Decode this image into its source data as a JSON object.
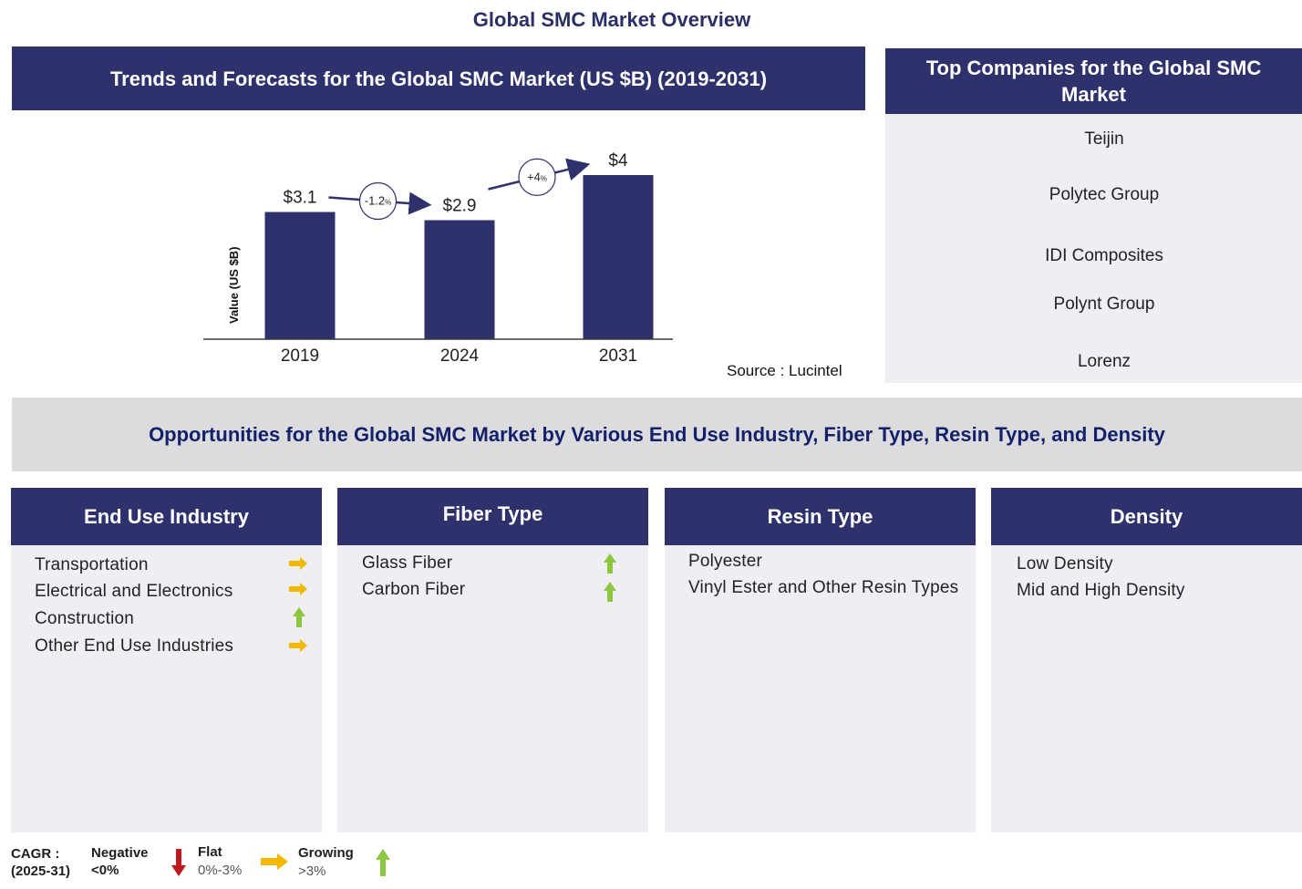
{
  "title": "Global SMC Market Overview",
  "chart_panel": {
    "header": "Trends and Forecasts for the Global SMC Market (US $B) (2019-2031)",
    "source": "Source : Lucintel"
  },
  "chart_data": {
    "type": "bar",
    "title": "Trends and Forecasts for the Global SMC Market (US $B) (2019-2031)",
    "categories": [
      "2019",
      "2024",
      "2031"
    ],
    "values": [
      3.1,
      2.9,
      4
    ],
    "data_labels": [
      "$3.1",
      "$2.9",
      "$4"
    ],
    "xlabel": "",
    "ylabel": "Value (US $B)",
    "ylim": [
      0,
      4
    ],
    "grid": false,
    "bar_color": "#2e316b",
    "annotations": [
      {
        "from": "2019",
        "to": "2024",
        "text": "-1.2",
        "unit": "%"
      },
      {
        "from": "2024",
        "to": "2031",
        "text": "+4",
        "unit": "%"
      }
    ]
  },
  "companies": {
    "header": "Top Companies for the Global SMC Market",
    "items": [
      "Teijin",
      "Polytec Group",
      "IDI Composites",
      "Polynt Group",
      "Lorenz"
    ]
  },
  "opportunities": {
    "banner": "Opportunities for the Global SMC Market by Various End Use Industry, Fiber Type, Resin Type, and Density"
  },
  "segments": {
    "end_use": {
      "title": "End Use Industry",
      "items": [
        {
          "label": "Transportation",
          "trend": "flat"
        },
        {
          "label": "Electrical and Electronics",
          "trend": "flat"
        },
        {
          "label": "Construction",
          "trend": "growing"
        },
        {
          "label": "Other End Use Industries",
          "trend": "flat"
        }
      ]
    },
    "fiber": {
      "title": "Fiber Type",
      "items": [
        {
          "label": "Glass Fiber",
          "trend": "growing"
        },
        {
          "label": "Carbon Fiber",
          "trend": "growing"
        }
      ]
    },
    "resin": {
      "title": "Resin Type",
      "items": [
        {
          "label": "Polyester"
        },
        {
          "label": "Vinyl Ester and Other Resin Types"
        }
      ]
    },
    "density": {
      "title": "Density",
      "items": [
        {
          "label": "Low Density"
        },
        {
          "label": "Mid and High Density"
        }
      ]
    }
  },
  "legend": {
    "cagr_label": "CAGR :",
    "cagr_period": "(2025-31)",
    "negative": {
      "label": "Negative",
      "range": "<0%",
      "color": "#c0171c"
    },
    "flat": {
      "label": "Flat",
      "range": "0%-3%",
      "color": "#f5b800"
    },
    "growing": {
      "label": "Growing",
      "range": ">3%",
      "color": "#8dc63f"
    }
  }
}
